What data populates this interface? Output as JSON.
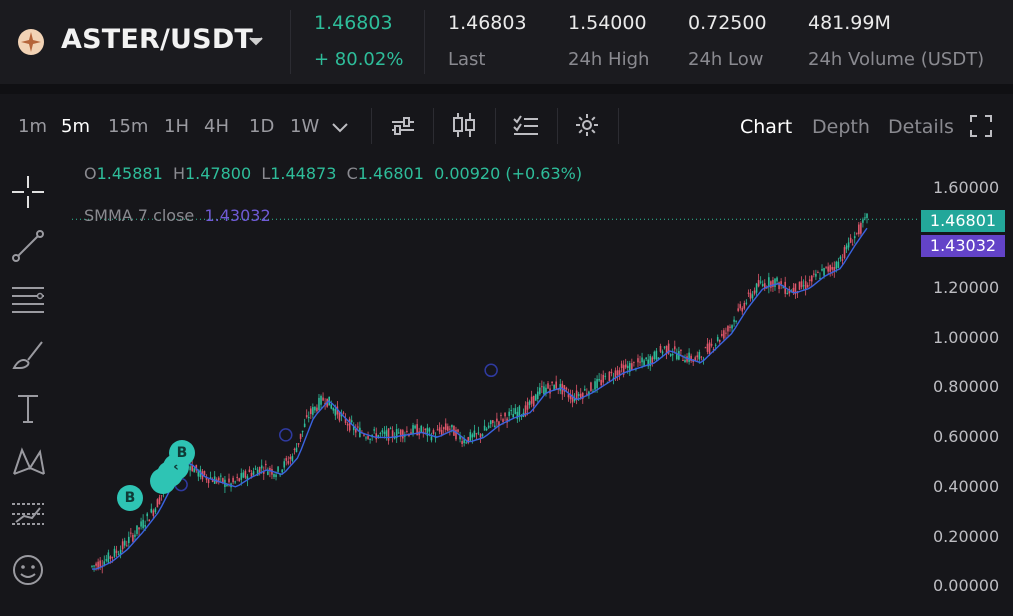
{
  "header": {
    "pair": "ASTER/USDT",
    "price": "1.46803",
    "change": "+ 80.02%",
    "stats": [
      {
        "value": "1.46803",
        "label": "Last"
      },
      {
        "value": "1.54000",
        "label": "24h High"
      },
      {
        "value": "0.72500",
        "label": "24h Low"
      },
      {
        "value": "481.99M",
        "label": "24h Volume (USDT)"
      }
    ]
  },
  "toolbar": {
    "timeframes": [
      "1m",
      "5m",
      "15m",
      "1H",
      "4H",
      "1D",
      "1W"
    ],
    "active_timeframe": "5m",
    "views": [
      "Chart",
      "Depth",
      "Details"
    ],
    "active_view": "Chart"
  },
  "legend": {
    "o_label": "O",
    "o": "1.45881",
    "h_label": "H",
    "h": "1.47800",
    "l_label": "L",
    "l": "1.44873",
    "c_label": "C",
    "c": "1.46801",
    "change": "0.00920 (+0.63%)",
    "indicator_label": "SMMA 7 close",
    "indicator_value": "1.43032"
  },
  "price_tags": {
    "last": "1.46801",
    "smma": "1.43032"
  },
  "markers": [
    "B",
    "B"
  ],
  "colors": {
    "up": "#2ebd9a",
    "down": "#e0566b",
    "smma": "#3a63e0",
    "accent_teal": "#23a79a",
    "accent_purple": "#6343c8"
  },
  "chart_data": {
    "type": "line",
    "title": "",
    "xlabel": "",
    "ylabel": "",
    "ylim": [
      0,
      1.7
    ],
    "yticks": [
      "1.60000",
      "1.40000",
      "1.20000",
      "1.00000",
      "0.80000",
      "0.60000",
      "0.40000",
      "0.20000",
      "0.00000"
    ],
    "series": [
      {
        "x": [
          0,
          2,
          4,
          6,
          8,
          10,
          12,
          14,
          16,
          18,
          20,
          22,
          24,
          26,
          28,
          30,
          32,
          34,
          36,
          38,
          40,
          42,
          44,
          46,
          48,
          50,
          52,
          54,
          56,
          58,
          60,
          62,
          64,
          66,
          68,
          70,
          72,
          74,
          76,
          78,
          80,
          82,
          84,
          86,
          88,
          90,
          92,
          94,
          96,
          98,
          100
        ],
        "values": [
          0.07,
          0.1,
          0.15,
          0.22,
          0.3,
          0.42,
          0.5,
          0.44,
          0.42,
          0.4,
          0.44,
          0.47,
          0.45,
          0.52,
          0.68,
          0.75,
          0.68,
          0.62,
          0.6,
          0.6,
          0.61,
          0.62,
          0.6,
          0.63,
          0.58,
          0.6,
          0.65,
          0.68,
          0.7,
          0.78,
          0.8,
          0.75,
          0.78,
          0.82,
          0.86,
          0.88,
          0.9,
          0.95,
          0.92,
          0.9,
          0.96,
          1.02,
          1.12,
          1.2,
          1.22,
          1.18,
          1.2,
          1.25,
          1.28,
          1.38,
          1.468
        ]
      }
    ]
  }
}
